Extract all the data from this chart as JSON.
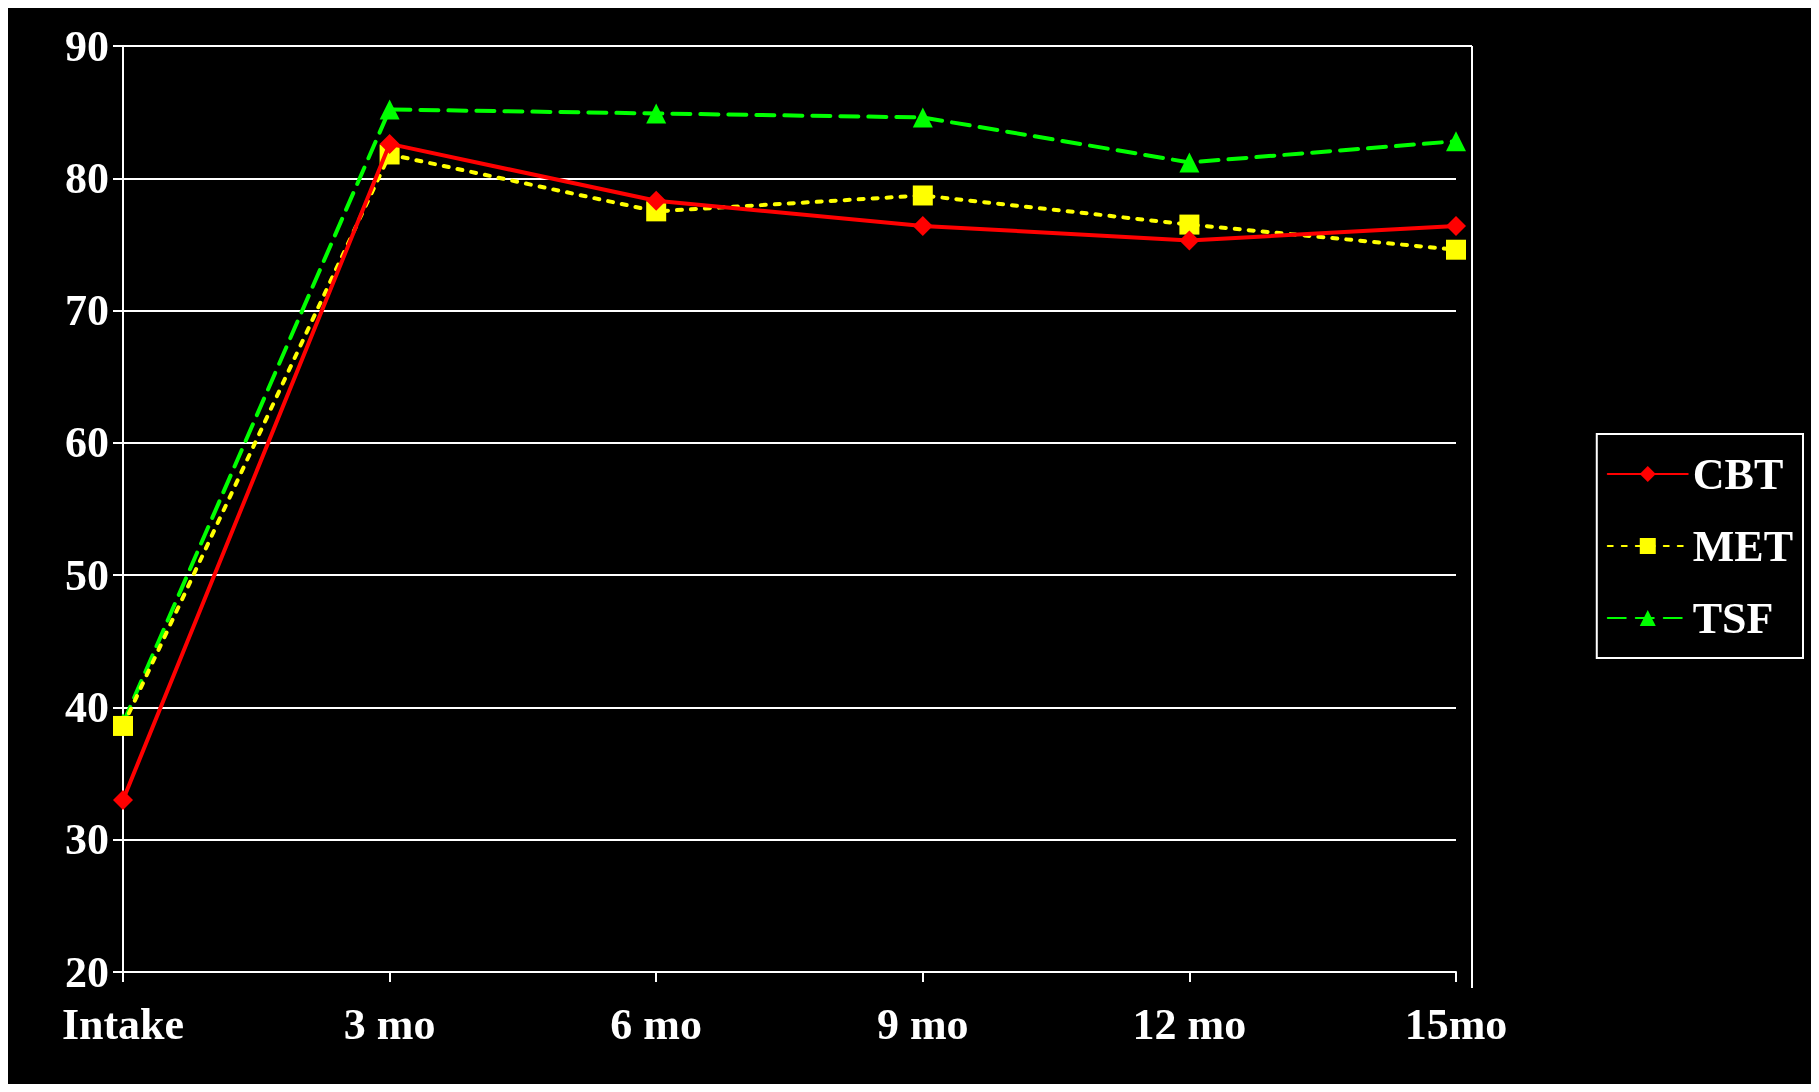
{
  "chart_data": {
    "type": "line",
    "categories": [
      "Intake",
      "3 mo",
      "6 mo",
      "9 mo",
      "12 mo",
      "15mo"
    ],
    "series": [
      {
        "name": "CBT",
        "color": "#ff0000",
        "marker": "diamond",
        "line_style": "solid",
        "values": [
          33.0,
          82.6,
          78.3,
          76.4,
          75.3,
          76.4
        ]
      },
      {
        "name": "MET",
        "color": "#ffff00",
        "marker": "square",
        "line_style": "dotted",
        "values": [
          38.6,
          81.8,
          77.5,
          78.7,
          76.5,
          74.6
        ]
      },
      {
        "name": "TSF",
        "color": "#00ff00",
        "marker": "triangle",
        "line_style": "dashed",
        "values": [
          38.8,
          85.2,
          84.9,
          84.6,
          81.2,
          82.8
        ]
      }
    ],
    "ylim": [
      20,
      90
    ],
    "yticks": [
      20,
      30,
      40,
      50,
      60,
      70,
      80,
      90
    ],
    "grid": "y",
    "legend": "right"
  }
}
